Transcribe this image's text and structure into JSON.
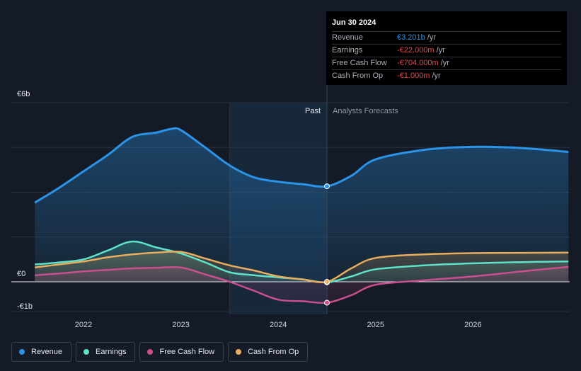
{
  "chart_data": {
    "type": "area",
    "y_unit": "€b",
    "ylim": [
      -1,
      6
    ],
    "y_ticks": [
      {
        "value": 6,
        "label": "€6b"
      },
      {
        "value": 0,
        "label": "€0"
      },
      {
        "value": -1,
        "label": "-€1b"
      }
    ],
    "x_ticks": [
      {
        "value": 2022,
        "label": "2022"
      },
      {
        "value": 2023,
        "label": "2023"
      },
      {
        "value": 2024,
        "label": "2024"
      },
      {
        "value": 2025,
        "label": "2025"
      },
      {
        "value": 2026,
        "label": "2026"
      }
    ],
    "xlim": [
      2021.2,
      2026.98
    ],
    "past_label": "Past",
    "forecast_label": "Analysts Forecasts",
    "highlight_start": 2023.5,
    "divider_x": 2024.5,
    "series": [
      {
        "name": "Revenue",
        "color": "#2b94e8",
        "points": [
          [
            2021.5,
            2.65
          ],
          [
            2021.75,
            3.15
          ],
          [
            2022,
            3.7
          ],
          [
            2022.25,
            4.25
          ],
          [
            2022.5,
            4.85
          ],
          [
            2022.75,
            5.0
          ],
          [
            2022.9,
            5.12
          ],
          [
            2023.0,
            5.08
          ],
          [
            2023.25,
            4.5
          ],
          [
            2023.5,
            3.9
          ],
          [
            2023.75,
            3.5
          ],
          [
            2024.0,
            3.35
          ],
          [
            2024.25,
            3.27
          ],
          [
            2024.5,
            3.2
          ],
          [
            2024.75,
            3.55
          ],
          [
            2025.0,
            4.1
          ],
          [
            2025.5,
            4.42
          ],
          [
            2026.0,
            4.52
          ],
          [
            2026.5,
            4.48
          ],
          [
            2026.98,
            4.35
          ]
        ]
      },
      {
        "name": "Earnings",
        "color": "#5ee3c8",
        "points": [
          [
            2021.5,
            0.58
          ],
          [
            2021.75,
            0.65
          ],
          [
            2022,
            0.75
          ],
          [
            2022.25,
            1.05
          ],
          [
            2022.5,
            1.35
          ],
          [
            2022.75,
            1.15
          ],
          [
            2023.0,
            0.95
          ],
          [
            2023.25,
            0.65
          ],
          [
            2023.5,
            0.32
          ],
          [
            2023.75,
            0.22
          ],
          [
            2024.0,
            0.15
          ],
          [
            2024.25,
            0.08
          ],
          [
            2024.5,
            -0.02
          ],
          [
            2024.75,
            0.18
          ],
          [
            2025.0,
            0.42
          ],
          [
            2025.5,
            0.55
          ],
          [
            2026.0,
            0.62
          ],
          [
            2026.5,
            0.66
          ],
          [
            2026.98,
            0.68
          ]
        ]
      },
      {
        "name": "Free Cash Flow",
        "color": "#c94f8f",
        "points": [
          [
            2021.5,
            0.22
          ],
          [
            2021.75,
            0.28
          ],
          [
            2022,
            0.35
          ],
          [
            2022.25,
            0.4
          ],
          [
            2022.5,
            0.45
          ],
          [
            2022.75,
            0.47
          ],
          [
            2023.0,
            0.48
          ],
          [
            2023.25,
            0.25
          ],
          [
            2023.5,
            0.0
          ],
          [
            2023.75,
            -0.3
          ],
          [
            2024.0,
            -0.6
          ],
          [
            2024.25,
            -0.65
          ],
          [
            2024.5,
            -0.7
          ],
          [
            2024.75,
            -0.45
          ],
          [
            2025.0,
            -0.1
          ],
          [
            2025.5,
            0.05
          ],
          [
            2026.0,
            0.18
          ],
          [
            2026.5,
            0.35
          ],
          [
            2026.98,
            0.5
          ]
        ]
      },
      {
        "name": "Cash From Op",
        "color": "#e8ad5e",
        "points": [
          [
            2021.5,
            0.48
          ],
          [
            2021.75,
            0.58
          ],
          [
            2022,
            0.68
          ],
          [
            2022.25,
            0.82
          ],
          [
            2022.5,
            0.92
          ],
          [
            2022.75,
            0.98
          ],
          [
            2023.0,
            1.0
          ],
          [
            2023.25,
            0.78
          ],
          [
            2023.5,
            0.55
          ],
          [
            2023.75,
            0.38
          ],
          [
            2024.0,
            0.18
          ],
          [
            2024.25,
            0.08
          ],
          [
            2024.5,
            -0.001
          ],
          [
            2024.75,
            0.45
          ],
          [
            2025.0,
            0.8
          ],
          [
            2025.5,
            0.92
          ],
          [
            2026.0,
            0.96
          ],
          [
            2026.5,
            0.97
          ],
          [
            2026.98,
            0.98
          ]
        ]
      }
    ]
  },
  "tooltip": {
    "date": "Jun 30 2024",
    "rows": [
      {
        "label": "Revenue",
        "value": "€3.201b",
        "unit": "/yr",
        "color": "#2b94e8"
      },
      {
        "label": "Earnings",
        "value": "-€22.000m",
        "unit": "/yr",
        "color": "#e8474a"
      },
      {
        "label": "Free Cash Flow",
        "value": "-€704.000m",
        "unit": "/yr",
        "color": "#e8474a"
      },
      {
        "label": "Cash From Op",
        "value": "-€1.000m",
        "unit": "/yr",
        "color": "#e8474a"
      }
    ]
  },
  "legend": [
    {
      "label": "Revenue",
      "color": "#2b94e8"
    },
    {
      "label": "Earnings",
      "color": "#5ee3c8"
    },
    {
      "label": "Free Cash Flow",
      "color": "#c94f8f"
    },
    {
      "label": "Cash From Op",
      "color": "#e8ad5e"
    }
  ]
}
